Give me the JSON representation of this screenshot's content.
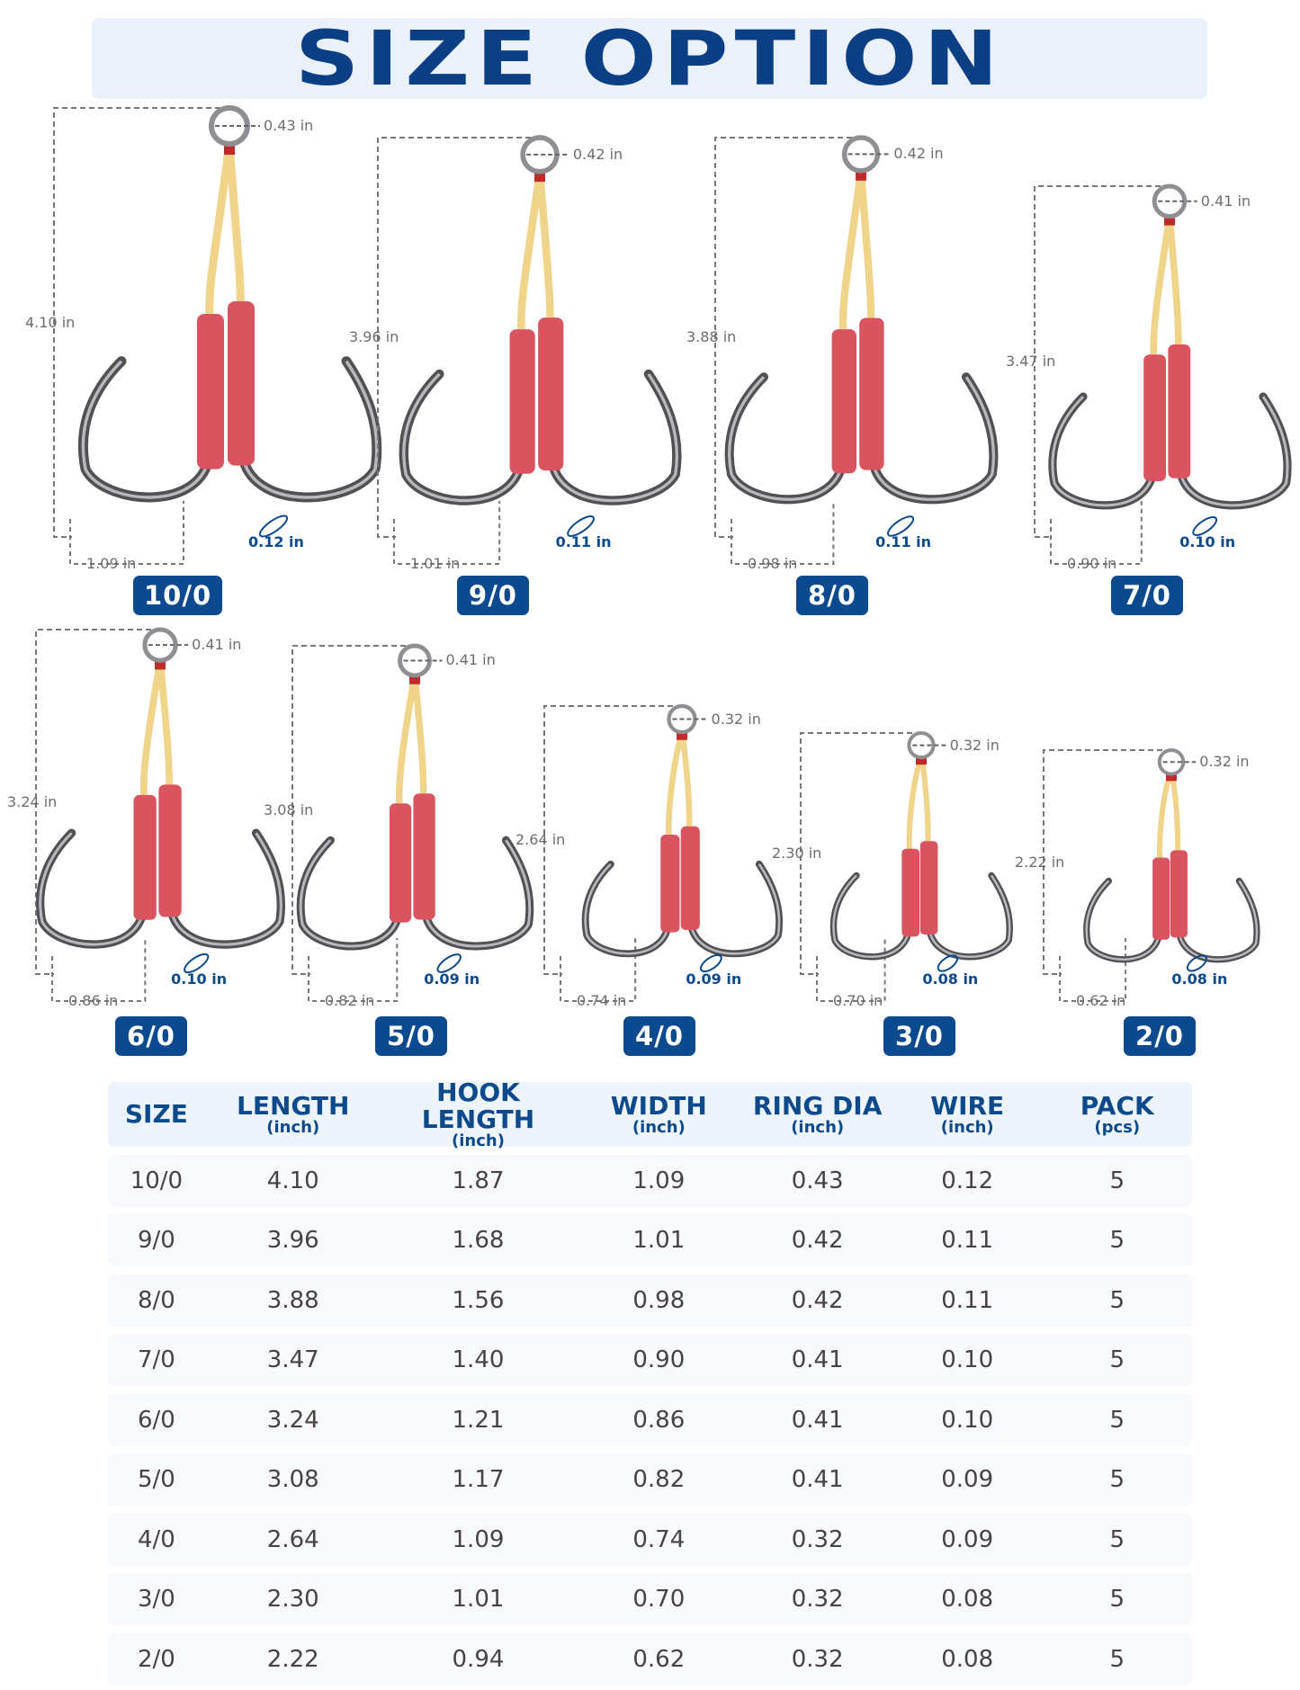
{
  "title": "SIZE OPTION",
  "hooks": [
    {
      "size": "10/0",
      "length": "4.10 in",
      "ring": "0.43 in",
      "width": "1.09 in",
      "wire": "0.12 in"
    },
    {
      "size": "9/0",
      "length": "3.96 in",
      "ring": "0.42 in",
      "width": "1.01 in",
      "wire": "0.11 in"
    },
    {
      "size": "8/0",
      "length": "3.88 in",
      "ring": "0.42 in",
      "width": "0.98 in",
      "wire": "0.11 in"
    },
    {
      "size": "7/0",
      "length": "3.47 in",
      "ring": "0.41 in",
      "width": "0.90 in",
      "wire": "0.10 in"
    },
    {
      "size": "6/0",
      "length": "3.24 in",
      "ring": "0.41 in",
      "width": "0.86 in",
      "wire": "0.10 in"
    },
    {
      "size": "5/0",
      "length": "3.08 in",
      "ring": "0.41 in",
      "width": "0.82 in",
      "wire": "0.09 in"
    },
    {
      "size": "4/0",
      "length": "2.64 in",
      "ring": "0.32 in",
      "width": "0.74 in",
      "wire": "0.09 in"
    },
    {
      "size": "3/0",
      "length": "2.30 in",
      "ring": "0.32 in",
      "width": "0.70 in",
      "wire": "0.08 in"
    },
    {
      "size": "2/0",
      "length": "2.22 in",
      "ring": "0.32 in",
      "width": "0.62 in",
      "wire": "0.08 in"
    }
  ],
  "table": {
    "headers": [
      {
        "label": "SIZE",
        "unit": ""
      },
      {
        "label": "LENGTH",
        "unit": "(inch)"
      },
      {
        "label": "HOOK LENGTH",
        "unit": "(inch)"
      },
      {
        "label": "WIDTH",
        "unit": "(inch)"
      },
      {
        "label": "RING DIA",
        "unit": "(inch)"
      },
      {
        "label": "WIRE",
        "unit": "(inch)"
      },
      {
        "label": "PACK",
        "unit": "(pcs)"
      }
    ],
    "rows": [
      [
        "10/0",
        "4.10",
        "1.87",
        "1.09",
        "0.43",
        "0.12",
        "5"
      ],
      [
        "9/0",
        "3.96",
        "1.68",
        "1.01",
        "0.42",
        "0.11",
        "5"
      ],
      [
        "8/0",
        "3.88",
        "1.56",
        "0.98",
        "0.42",
        "0.11",
        "5"
      ],
      [
        "7/0",
        "3.47",
        "1.40",
        "0.90",
        "0.41",
        "0.10",
        "5"
      ],
      [
        "6/0",
        "3.24",
        "1.21",
        "0.86",
        "0.41",
        "0.10",
        "5"
      ],
      [
        "5/0",
        "3.08",
        "1.17",
        "0.82",
        "0.41",
        "0.09",
        "5"
      ],
      [
        "4/0",
        "2.64",
        "1.09",
        "0.74",
        "0.32",
        "0.09",
        "5"
      ],
      [
        "3/0",
        "2.30",
        "1.01",
        "0.70",
        "0.32",
        "0.08",
        "5"
      ],
      [
        "2/0",
        "2.22",
        "0.94",
        "0.62",
        "0.32",
        "0.08",
        "5"
      ]
    ]
  },
  "colors": {
    "brand_blue": "#0c4a8f",
    "sleeve_red": "#d9545f",
    "cord_yellow": "#f0d48a",
    "steel": "#6f6f73"
  }
}
